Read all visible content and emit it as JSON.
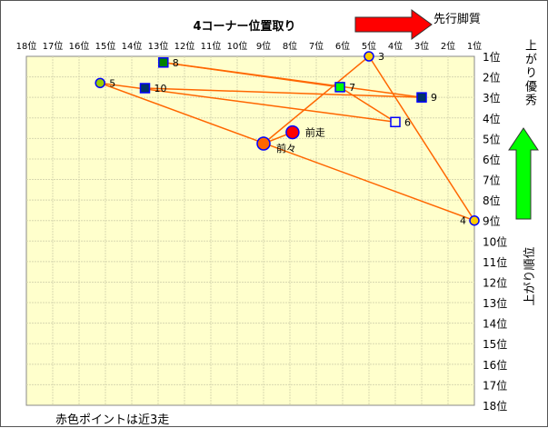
{
  "chart_data": {
    "type": "scatter",
    "title": "4コーナー位置取り",
    "xlabel": "4コーナー位置取り",
    "ylabel": "上がり順位",
    "x_direction_label": "先行脚質",
    "y_direction_label": "上がり優秀",
    "footnote": "赤色ポイントは近3走",
    "x_ticks": [
      "18位",
      "17位",
      "16位",
      "15位",
      "14位",
      "13位",
      "12位",
      "11位",
      "10位",
      "9位",
      "8位",
      "7位",
      "6位",
      "5位",
      "4位",
      "3位",
      "2位",
      "1位"
    ],
    "y_ticks": [
      "1位",
      "2位",
      "3位",
      "4位",
      "5位",
      "6位",
      "7位",
      "8位",
      "9位",
      "10位",
      "11位",
      "12位",
      "13位",
      "14位",
      "15位",
      "16位",
      "17位",
      "18位"
    ],
    "xlim": [
      18,
      1
    ],
    "ylim": [
      1,
      18
    ],
    "grid": true,
    "plot_background": "#ffffcc",
    "line_color": "#ff6600",
    "points": [
      {
        "label": "前走",
        "x": 7.9,
        "y": 4.7,
        "shape": "circle",
        "fill": "#ff0000",
        "size": "large"
      },
      {
        "label": "前々",
        "x": 9.0,
        "y": 5.25,
        "shape": "circle",
        "fill": "#ff6600",
        "size": "large"
      },
      {
        "label": "3",
        "x": 5.0,
        "y": 1.0,
        "shape": "circle",
        "fill": "#ffcc00"
      },
      {
        "label": "4",
        "x": 1.0,
        "y": 9.0,
        "shape": "circle",
        "fill": "#ffcc00"
      },
      {
        "label": "5",
        "x": 15.2,
        "y": 2.3,
        "shape": "circle",
        "fill": "#99cc00"
      },
      {
        "label": "6",
        "x": 4.0,
        "y": 4.2,
        "shape": "square",
        "fill": "#ffffcc"
      },
      {
        "label": "7",
        "x": 6.1,
        "y": 2.5,
        "shape": "square",
        "fill": "#00ff00"
      },
      {
        "label": "8",
        "x": 12.8,
        "y": 1.3,
        "shape": "square",
        "fill": "#008000"
      },
      {
        "label": "9",
        "x": 3.0,
        "y": 3.0,
        "shape": "square",
        "fill": "#003366"
      },
      {
        "label": "10",
        "x": 13.5,
        "y": 2.55,
        "shape": "square",
        "fill": "#003366"
      }
    ]
  }
}
